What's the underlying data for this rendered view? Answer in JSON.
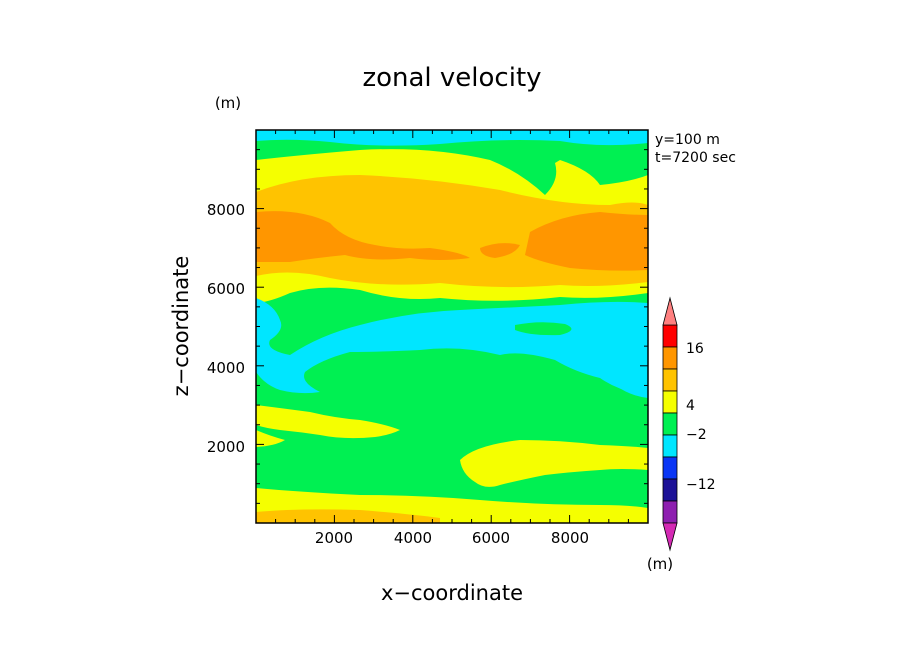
{
  "chart_data": {
    "type": "heatmap",
    "title": "zonal velocity",
    "xlabel": "x−coordinate",
    "ylabel": "z−coordinate",
    "x_unit": "(m)",
    "y_unit": "(m)",
    "colorbar_unit": "(m)",
    "annotations": [
      "y=100 m",
      "t=7200 sec"
    ],
    "xlim": [
      0,
      10000
    ],
    "ylim": [
      0,
      10000
    ],
    "xticks": [
      2000,
      4000,
      6000,
      8000
    ],
    "yticks": [
      2000,
      4000,
      6000,
      8000
    ],
    "xtick_labels": [
      "2000",
      "4000",
      "6000",
      "8000"
    ],
    "ytick_labels": [
      "2000",
      "4000",
      "6000",
      "8000"
    ],
    "colorbar": {
      "colors": [
        "#d42ab4",
        "#8e1fb0",
        "#1d1297",
        "#0a36f5",
        "#00e6ff",
        "#00f052",
        "#f5ff00",
        "#ffc300",
        "#ff9600",
        "#ff0000",
        "#ff8080"
      ],
      "tick_labels": [
        "16",
        "4",
        "−2",
        "−12"
      ]
    },
    "bands": [
      {
        "z": [
          0,
          800
        ],
        "dominant": "4",
        "notes": "yellow near bottom with orange patch"
      },
      {
        "z": [
          800,
          1500
        ],
        "dominant": "−2 to 4",
        "notes": "green"
      },
      {
        "z": [
          1500,
          2900
        ],
        "dominant": "−2 to 4",
        "notes": "green with yellow streaks"
      },
      {
        "z": [
          2900,
          4200
        ],
        "dominant": "−2",
        "notes": "green with cyan patches"
      },
      {
        "z": [
          4200,
          5500
        ],
        "dominant": "< −2",
        "notes": "cyan"
      },
      {
        "z": [
          5500,
          6400
        ],
        "dominant": "−2 to 4",
        "notes": "green and yellow"
      },
      {
        "z": [
          6400,
          7800
        ],
        "dominant": "4 to 16",
        "notes": "orange core"
      },
      {
        "z": [
          7800,
          9000
        ],
        "dominant": "4",
        "notes": "yellow/light orange"
      },
      {
        "z": [
          9000,
          10000
        ],
        "dominant": "−2",
        "notes": "green, cyan at top"
      }
    ]
  }
}
